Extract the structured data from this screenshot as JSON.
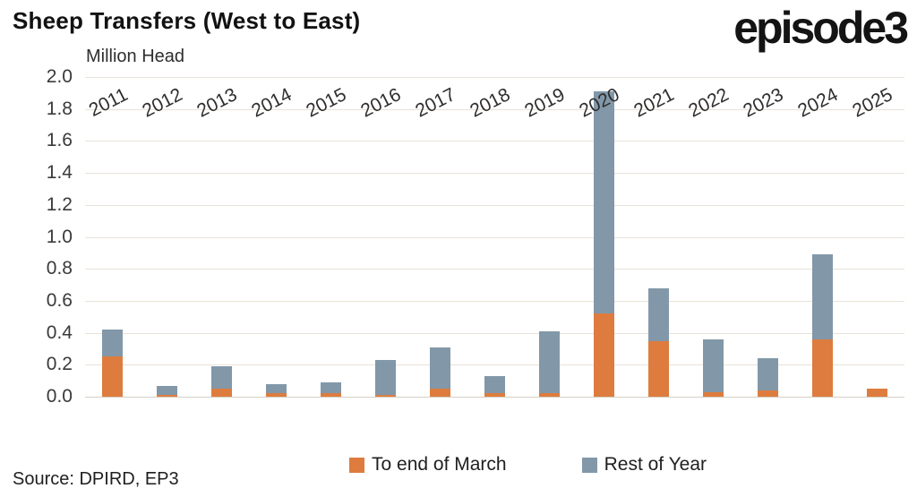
{
  "header": {
    "title": "Sheep Transfers (West to East)",
    "logo": "episode3"
  },
  "chart_data": {
    "type": "bar",
    "stacked": true,
    "title": "Sheep Transfers (West to East)",
    "ylabel": "Million Head",
    "ylim": [
      0,
      2.0
    ],
    "ytick_step": 0.2,
    "grid": true,
    "legend_position": "bottom",
    "categories": [
      "2011",
      "2012",
      "2013",
      "2014",
      "2015",
      "2016",
      "2017",
      "2018",
      "2019",
      "2020",
      "2021",
      "2022",
      "2023",
      "2024",
      "2025"
    ],
    "series": [
      {
        "name": "To end of March",
        "color": "#dd7c3e",
        "values": [
          0.25,
          0.01,
          0.05,
          0.02,
          0.02,
          0.01,
          0.05,
          0.02,
          0.02,
          0.52,
          0.35,
          0.03,
          0.04,
          0.36,
          0.05
        ]
      },
      {
        "name": "Rest of Year",
        "color": "#8298a9",
        "values": [
          0.17,
          0.06,
          0.14,
          0.06,
          0.07,
          0.22,
          0.26,
          0.11,
          0.39,
          1.39,
          0.33,
          0.33,
          0.2,
          0.53,
          0.0
        ]
      }
    ]
  },
  "footer": {
    "source": "Source: DPIRD, EP3"
  }
}
